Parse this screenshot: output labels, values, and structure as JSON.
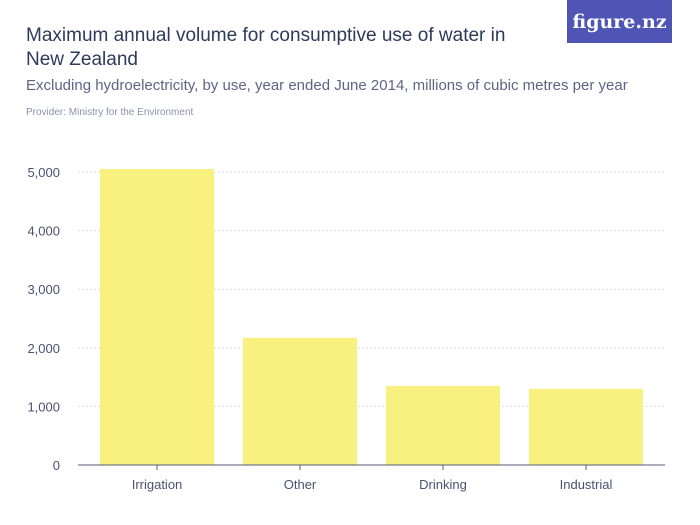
{
  "header": {
    "title": "Maximum annual volume for consumptive use of water in New Zealand",
    "subtitle": "Excluding hydroelectricity, by use, year ended June 2014, millions of cubic metres per year",
    "provider": "Provider: Ministry for the Environment",
    "logo_text": "figure.nz"
  },
  "colors": {
    "bar": "#f8f07f",
    "grid": "#dcdcdc",
    "axis": "#555c7a",
    "logo_bg": "#4e55b5"
  },
  "chart_data": {
    "type": "bar",
    "categories": [
      "Irrigation",
      "Other",
      "Drinking",
      "Industrial"
    ],
    "values": [
      5050,
      2170,
      1350,
      1300
    ],
    "yticks": [
      0,
      1000,
      2000,
      3000,
      4000,
      5000
    ],
    "ytick_labels": [
      "0",
      "1,000",
      "2,000",
      "3,000",
      "4,000",
      "5,000"
    ],
    "ylim": [
      0,
      5000
    ],
    "grid": true,
    "legend": "none"
  }
}
